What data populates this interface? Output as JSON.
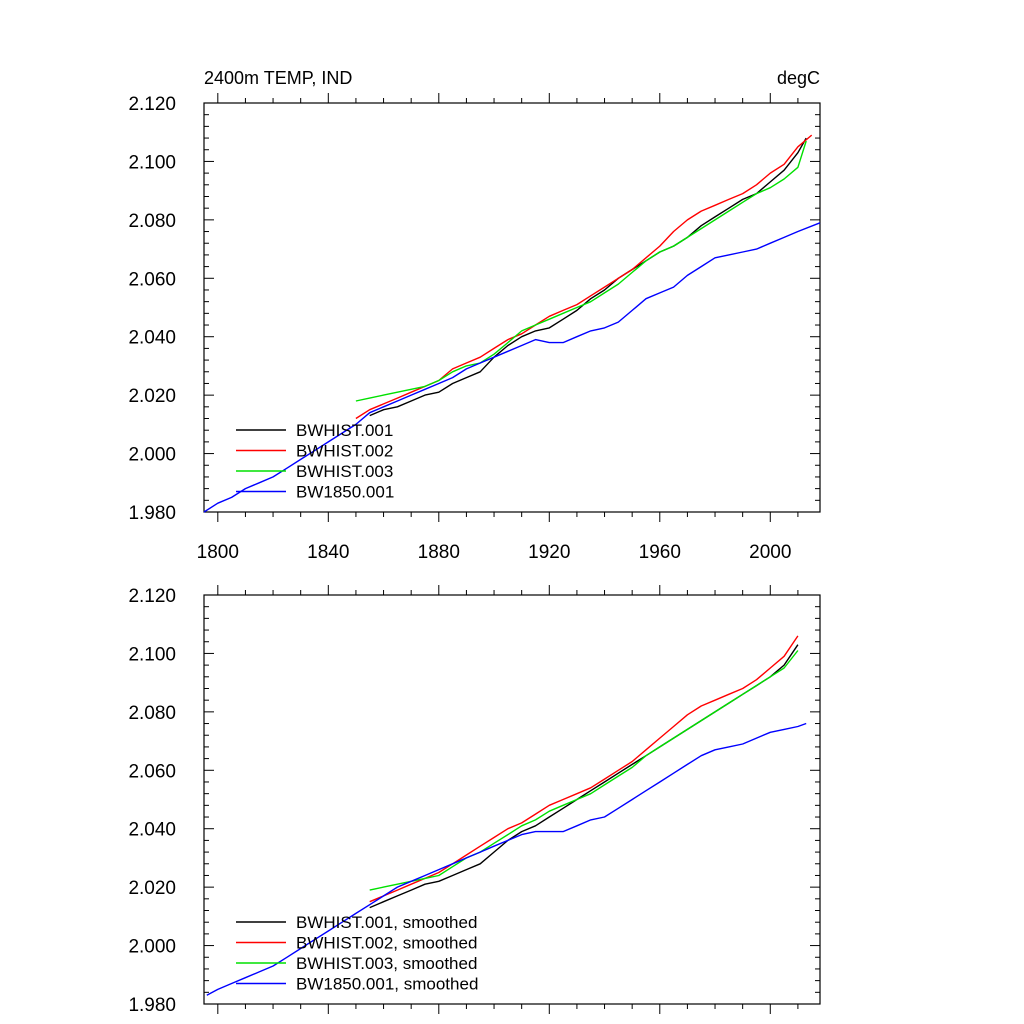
{
  "chart_data": [
    {
      "type": "line",
      "title_left": "2400m TEMP, IND",
      "title_right": "degC",
      "xlim": [
        1795,
        2018
      ],
      "ylim": [
        1.98,
        2.12
      ],
      "xticks": [
        1800,
        1840,
        1880,
        1920,
        1960,
        2000
      ],
      "xtick_labels": [
        "1800",
        "1840",
        "1880",
        "1920",
        "1960",
        "2000"
      ],
      "yticks": [
        1.98,
        2.0,
        2.02,
        2.04,
        2.06,
        2.08,
        2.1,
        2.12
      ],
      "ytick_labels": [
        "1.980",
        "2.000",
        "2.020",
        "2.040",
        "2.060",
        "2.080",
        "2.100",
        "2.120"
      ],
      "legend_position": "bottom-left",
      "series": [
        {
          "name": "BWHIST.001",
          "color": "#000000",
          "x": [
            1855,
            1860,
            1865,
            1870,
            1875,
            1880,
            1885,
            1890,
            1895,
            1900,
            1905,
            1910,
            1915,
            1920,
            1925,
            1930,
            1935,
            1940,
            1945,
            1950,
            1955,
            1960,
            1965,
            1970,
            1975,
            1980,
            1985,
            1990,
            1995,
            2000,
            2005,
            2010,
            2013
          ],
          "y": [
            2.013,
            2.015,
            2.016,
            2.018,
            2.02,
            2.021,
            2.024,
            2.026,
            2.028,
            2.033,
            2.037,
            2.04,
            2.042,
            2.043,
            2.046,
            2.049,
            2.053,
            2.056,
            2.06,
            2.063,
            2.066,
            2.069,
            2.071,
            2.074,
            2.078,
            2.081,
            2.084,
            2.087,
            2.089,
            2.093,
            2.097,
            2.103,
            2.108
          ]
        },
        {
          "name": "BWHIST.002",
          "color": "#ff0000",
          "x": [
            1850,
            1855,
            1860,
            1865,
            1870,
            1875,
            1880,
            1885,
            1890,
            1895,
            1900,
            1905,
            1910,
            1915,
            1920,
            1925,
            1930,
            1935,
            1940,
            1945,
            1950,
            1955,
            1960,
            1965,
            1970,
            1975,
            1980,
            1985,
            1990,
            1995,
            2000,
            2005,
            2010,
            2015
          ],
          "y": [
            2.012,
            2.015,
            2.017,
            2.019,
            2.021,
            2.023,
            2.025,
            2.029,
            2.031,
            2.033,
            2.036,
            2.039,
            2.041,
            2.044,
            2.047,
            2.049,
            2.051,
            2.054,
            2.057,
            2.06,
            2.063,
            2.067,
            2.071,
            2.076,
            2.08,
            2.083,
            2.085,
            2.087,
            2.089,
            2.092,
            2.096,
            2.099,
            2.105,
            2.109
          ]
        },
        {
          "name": "BWHIST.003",
          "color": "#00e000",
          "x": [
            1850,
            1855,
            1860,
            1865,
            1870,
            1875,
            1880,
            1885,
            1890,
            1895,
            1900,
            1905,
            1910,
            1915,
            1920,
            1925,
            1930,
            1935,
            1940,
            1945,
            1950,
            1955,
            1960,
            1965,
            1970,
            1975,
            1980,
            1985,
            1990,
            1995,
            2000,
            2005,
            2010,
            2013
          ],
          "y": [
            2.018,
            2.019,
            2.02,
            2.021,
            2.022,
            2.023,
            2.025,
            2.028,
            2.03,
            2.031,
            2.034,
            2.038,
            2.042,
            2.044,
            2.046,
            2.048,
            2.05,
            2.052,
            2.055,
            2.058,
            2.062,
            2.066,
            2.069,
            2.071,
            2.074,
            2.077,
            2.08,
            2.083,
            2.086,
            2.089,
            2.091,
            2.094,
            2.098,
            2.107
          ]
        },
        {
          "name": "BW1850.001",
          "color": "#0000ff",
          "x": [
            1795,
            1800,
            1805,
            1810,
            1815,
            1820,
            1825,
            1830,
            1835,
            1840,
            1845,
            1850,
            1855,
            1860,
            1865,
            1870,
            1875,
            1880,
            1885,
            1890,
            1895,
            1900,
            1905,
            1910,
            1915,
            1920,
            1925,
            1930,
            1935,
            1940,
            1945,
            1950,
            1955,
            1960,
            1965,
            1970,
            1975,
            1980,
            1985,
            1990,
            1995,
            2000,
            2005,
            2010,
            2018
          ],
          "y": [
            1.98,
            1.983,
            1.985,
            1.988,
            1.99,
            1.992,
            1.995,
            1.998,
            2.001,
            2.004,
            2.007,
            2.01,
            2.014,
            2.016,
            2.018,
            2.02,
            2.022,
            2.024,
            2.026,
            2.029,
            2.031,
            2.033,
            2.035,
            2.037,
            2.039,
            2.038,
            2.038,
            2.04,
            2.042,
            2.043,
            2.045,
            2.049,
            2.053,
            2.055,
            2.057,
            2.061,
            2.064,
            2.067,
            2.068,
            2.069,
            2.07,
            2.072,
            2.074,
            2.076,
            2.079
          ]
        }
      ]
    },
    {
      "type": "line",
      "title_left": "",
      "title_right": "",
      "xlim": [
        1795,
        2018
      ],
      "ylim": [
        1.98,
        2.12
      ],
      "xticks": [
        1800,
        1840,
        1880,
        1920,
        1960,
        2000
      ],
      "xtick_labels": [],
      "yticks": [
        1.98,
        2.0,
        2.02,
        2.04,
        2.06,
        2.08,
        2.1,
        2.12
      ],
      "ytick_labels": [
        "1.980",
        "2.000",
        "2.020",
        "2.040",
        "2.060",
        "2.080",
        "2.100",
        "2.120"
      ],
      "legend_position": "bottom-left",
      "series": [
        {
          "name": "BWHIST.001, smoothed",
          "color": "#000000",
          "x": [
            1855,
            1860,
            1865,
            1870,
            1875,
            1880,
            1885,
            1890,
            1895,
            1900,
            1905,
            1910,
            1915,
            1920,
            1925,
            1930,
            1935,
            1940,
            1945,
            1950,
            1955,
            1960,
            1965,
            1970,
            1975,
            1980,
            1985,
            1990,
            1995,
            2000,
            2005,
            2010
          ],
          "y": [
            2.013,
            2.015,
            2.017,
            2.019,
            2.021,
            2.022,
            2.024,
            2.026,
            2.028,
            2.032,
            2.036,
            2.039,
            2.041,
            2.044,
            2.047,
            2.05,
            2.053,
            2.056,
            2.059,
            2.062,
            2.065,
            2.068,
            2.071,
            2.074,
            2.077,
            2.08,
            2.083,
            2.086,
            2.089,
            2.092,
            2.096,
            2.103
          ]
        },
        {
          "name": "BWHIST.002, smoothed",
          "color": "#ff0000",
          "x": [
            1855,
            1860,
            1865,
            1870,
            1875,
            1880,
            1885,
            1890,
            1895,
            1900,
            1905,
            1910,
            1915,
            1920,
            1925,
            1930,
            1935,
            1940,
            1945,
            1950,
            1955,
            1960,
            1965,
            1970,
            1975,
            1980,
            1985,
            1990,
            1995,
            2000,
            2005,
            2010
          ],
          "y": [
            2.015,
            2.017,
            2.019,
            2.021,
            2.023,
            2.025,
            2.028,
            2.031,
            2.034,
            2.037,
            2.04,
            2.042,
            2.045,
            2.048,
            2.05,
            2.052,
            2.054,
            2.057,
            2.06,
            2.063,
            2.067,
            2.071,
            2.075,
            2.079,
            2.082,
            2.084,
            2.086,
            2.088,
            2.091,
            2.095,
            2.099,
            2.106
          ]
        },
        {
          "name": "BWHIST.003, smoothed",
          "color": "#00e000",
          "x": [
            1855,
            1860,
            1865,
            1870,
            1875,
            1880,
            1885,
            1890,
            1895,
            1900,
            1905,
            1910,
            1915,
            1920,
            1925,
            1930,
            1935,
            1940,
            1945,
            1950,
            1955,
            1960,
            1965,
            1970,
            1975,
            1980,
            1985,
            1990,
            1995,
            2000,
            2005,
            2010
          ],
          "y": [
            2.019,
            2.02,
            2.021,
            2.022,
            2.023,
            2.024,
            2.027,
            2.03,
            2.032,
            2.035,
            2.038,
            2.041,
            2.043,
            2.046,
            2.048,
            2.05,
            2.052,
            2.055,
            2.058,
            2.061,
            2.065,
            2.068,
            2.071,
            2.074,
            2.077,
            2.08,
            2.083,
            2.086,
            2.089,
            2.092,
            2.095,
            2.101
          ]
        },
        {
          "name": "BW1850.001, smoothed",
          "color": "#0000ff",
          "x": [
            1796,
            1800,
            1805,
            1810,
            1815,
            1820,
            1825,
            1830,
            1835,
            1840,
            1845,
            1850,
            1855,
            1860,
            1865,
            1870,
            1875,
            1880,
            1885,
            1890,
            1895,
            1900,
            1905,
            1910,
            1915,
            1920,
            1925,
            1930,
            1935,
            1940,
            1945,
            1950,
            1955,
            1960,
            1965,
            1970,
            1975,
            1980,
            1985,
            1990,
            1995,
            2000,
            2005,
            2010,
            2013
          ],
          "y": [
            1.983,
            1.985,
            1.987,
            1.989,
            1.991,
            1.993,
            1.996,
            1.999,
            2.002,
            2.005,
            2.008,
            2.011,
            2.014,
            2.017,
            2.02,
            2.022,
            2.024,
            2.026,
            2.028,
            2.03,
            2.032,
            2.034,
            2.036,
            2.038,
            2.039,
            2.039,
            2.039,
            2.041,
            2.043,
            2.044,
            2.047,
            2.05,
            2.053,
            2.056,
            2.059,
            2.062,
            2.065,
            2.067,
            2.068,
            2.069,
            2.071,
            2.073,
            2.074,
            2.075,
            2.076
          ]
        }
      ]
    }
  ]
}
